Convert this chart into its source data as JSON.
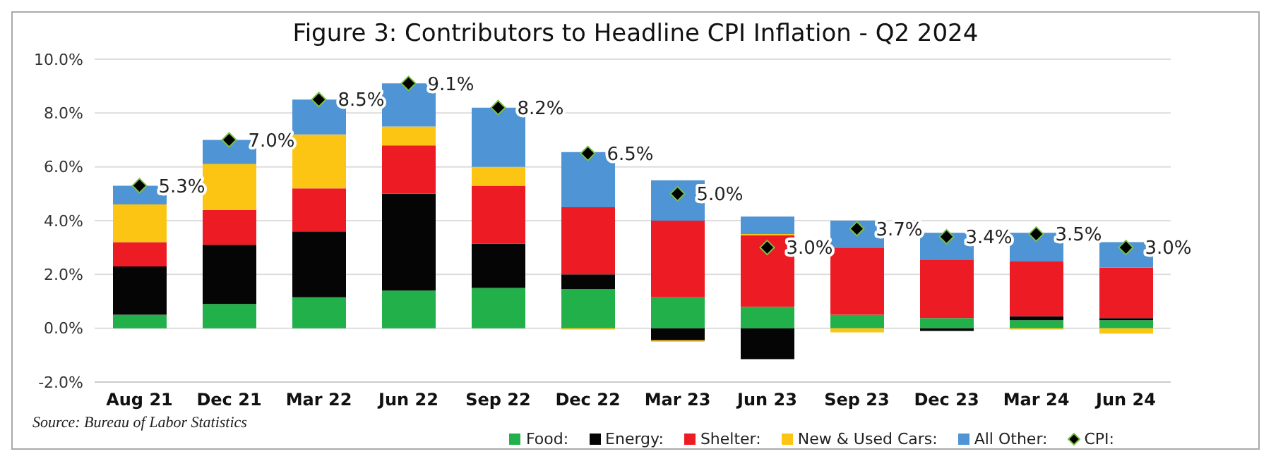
{
  "chart_data": {
    "type": "bar",
    "title": "Figure 3: Contributors to Headline CPI Inflation - Q2 2024",
    "categories": [
      "Aug 21",
      "Dec 21",
      "Mar 22",
      "Jun 22",
      "Sep 22",
      "Dec 22",
      "Mar 23",
      "Jun 23",
      "Sep 23",
      "Dec 23",
      "Mar 24",
      "Jun 24"
    ],
    "stacked": true,
    "series": [
      {
        "name": "Food:",
        "color": "#22b04b",
        "values": [
          0.5,
          0.9,
          1.15,
          1.4,
          1.5,
          1.45,
          1.15,
          0.8,
          0.5,
          0.38,
          0.3,
          0.3
        ]
      },
      {
        "name": "Energy:",
        "color": "#050505",
        "values": [
          1.8,
          2.2,
          2.45,
          3.6,
          1.65,
          0.55,
          -0.45,
          -1.15,
          null,
          -0.1,
          0.15,
          0.08
        ]
      },
      {
        "name": "Shelter:",
        "color": "#ed1c24",
        "values": [
          0.9,
          1.3,
          1.6,
          1.8,
          2.15,
          2.5,
          2.85,
          2.65,
          2.5,
          2.17,
          2.05,
          1.87
        ]
      },
      {
        "name": "New & Used Cars:",
        "color": "#fdc513",
        "values": [
          1.4,
          1.7,
          2.0,
          0.7,
          0.7,
          -0.05,
          -0.05,
          0.05,
          -0.15,
          null,
          -0.05,
          -0.2
        ]
      },
      {
        "name": "All Other:",
        "color": "#4f94d4",
        "values": [
          0.7,
          0.9,
          1.3,
          1.6,
          2.2,
          2.05,
          1.5,
          0.65,
          1.0,
          1.0,
          1.05,
          0.95
        ]
      },
      {
        "name": "CPI:",
        "type": "scatter",
        "marker": "diamond",
        "color": "#000000",
        "values": [
          5.3,
          7.0,
          8.5,
          9.1,
          8.2,
          6.5,
          5.0,
          3.0,
          3.7,
          3.4,
          3.5,
          3.0
        ],
        "value_labels": [
          "5.3%",
          "7.0%",
          "8.5%",
          "9.1%",
          "8.2%",
          "6.5%",
          "5.0%",
          "3.0%",
          "3.7%",
          "3.4%",
          "3.5%",
          "3.0%"
        ]
      }
    ],
    "ylim": [
      -2,
      10
    ],
    "yticks": [
      {
        "value": -2,
        "label": "-2.0%"
      },
      {
        "value": 0,
        "label": "0.0%"
      },
      {
        "value": 2,
        "label": "2.0%"
      },
      {
        "value": 4,
        "label": "4.0%"
      },
      {
        "value": 6,
        "label": "6.0%"
      },
      {
        "value": 8,
        "label": "8.0%"
      },
      {
        "value": 10,
        "label": "10.0%"
      }
    ],
    "grid": "y",
    "legend": "bottom right",
    "annotations": [
      "Source: Bureau of Labor Statistics"
    ]
  }
}
